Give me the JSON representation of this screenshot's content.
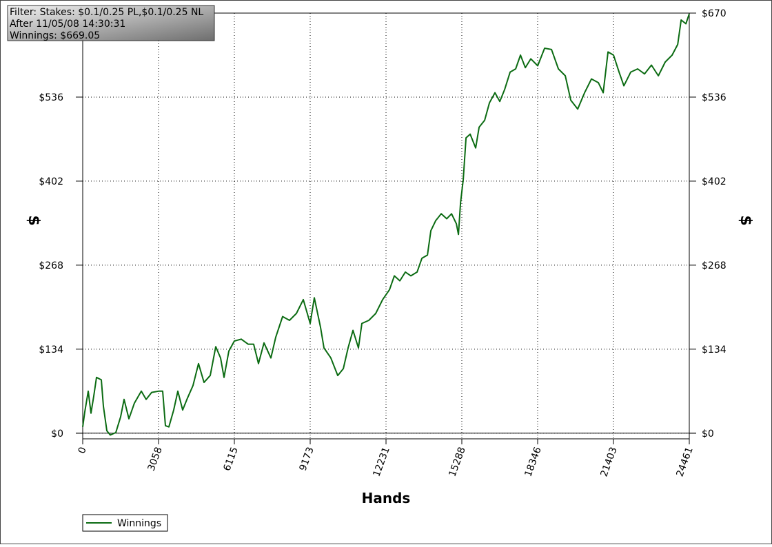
{
  "chart_data": {
    "type": "line",
    "annotations": [
      "Filter: Stakes: $0.1/0.25 PL,$0.1/0.25 NL",
      "After 11/05/08 14:30:31",
      "Winnings: $669.05"
    ],
    "x_label": "Hands",
    "y_label": "$",
    "xlim": [
      0,
      24461
    ],
    "xticks": [
      0,
      3058,
      6115,
      9173,
      12231,
      15288,
      18346,
      21403,
      24461
    ],
    "ylim": [
      -9,
      670
    ],
    "yticks": [
      {
        "value": 0,
        "label": "$0"
      },
      {
        "value": 134,
        "label": "$134"
      },
      {
        "value": 268,
        "label": "$268"
      },
      {
        "value": 402,
        "label": "$402"
      },
      {
        "value": 536,
        "label": "$536"
      },
      {
        "value": 670,
        "label": "$670"
      }
    ],
    "grid": true,
    "legend": "bottom-left",
    "x": [
      0,
      83,
      222,
      334,
      445,
      556,
      751,
      834,
      973,
      1112,
      1334,
      1529,
      1668,
      1862,
      2085,
      2363,
      2557,
      2780,
      3058,
      3225,
      3336,
      3475,
      3669,
      3836,
      4030,
      4225,
      4448,
      4670,
      4893,
      5143,
      5365,
      5560,
      5699,
      5894,
      6116,
      6394,
      6672,
      6894,
      7089,
      7311,
      7589,
      7784,
      8062,
      8340,
      8618,
      8896,
      9174,
      9341,
      9591,
      9730,
      10008,
      10286,
      10509,
      10703,
      10898,
      11120,
      11259,
      11537,
      11815,
      12093,
      12371,
      12566,
      12788,
      13011,
      13233,
      13483,
      13678,
      13900,
      14039,
      14234,
      14456,
      14678,
      14873,
      15068,
      15151,
      15234,
      15346,
      15457,
      15624,
      15846,
      15985,
      16207,
      16402,
      16624,
      16819,
      17014,
      17236,
      17458,
      17653,
      17848,
      18070,
      18348,
      18626,
      18904,
      19182,
      19460,
      19683,
      19961,
      20239,
      20517,
      20795,
      20990,
      21184,
      21407,
      21629,
      21824,
      22102,
      22380,
      22658,
      22936,
      23214,
      23492,
      23770,
      23993,
      24132,
      24326,
      24461
    ],
    "series": [
      {
        "name": "Winnings",
        "color": "#0b6b12",
        "values": [
          10,
          34,
          67,
          32,
          59,
          89,
          85,
          43,
          4,
          -3,
          1,
          26,
          54,
          23,
          48,
          67,
          54,
          65,
          67,
          67,
          12,
          10,
          37,
          67,
          37,
          56,
          76,
          111,
          81,
          92,
          138,
          120,
          89,
          131,
          147,
          150,
          142,
          142,
          111,
          144,
          120,
          153,
          186,
          180,
          191,
          213,
          175,
          216,
          169,
          136,
          120,
          92,
          103,
          136,
          164,
          136,
          175,
          180,
          191,
          213,
          229,
          251,
          243,
          257,
          251,
          257,
          279,
          284,
          323,
          339,
          350,
          342,
          350,
          334,
          317,
          367,
          405,
          471,
          477,
          455,
          488,
          499,
          527,
          543,
          529,
          548,
          576,
          581,
          603,
          583,
          597,
          586,
          614,
          612,
          581,
          570,
          531,
          517,
          543,
          565,
          559,
          543,
          608,
          603,
          576,
          554,
          576,
          581,
          573,
          587,
          570,
          592,
          603,
          620,
          659,
          653,
          669
        ]
      }
    ]
  }
}
